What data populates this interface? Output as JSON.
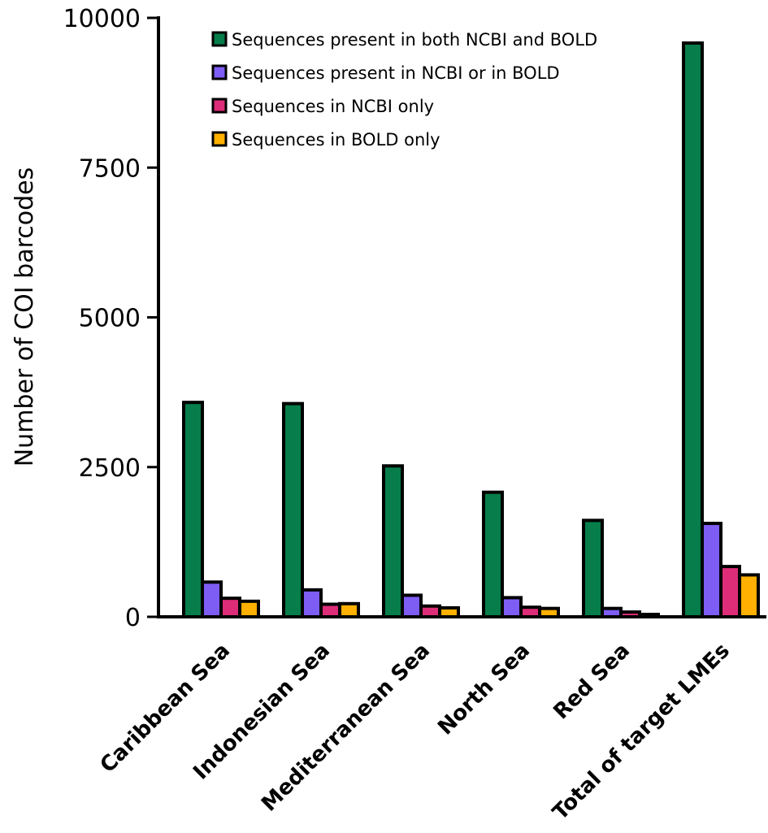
{
  "chart_data": {
    "type": "bar",
    "title": "",
    "xlabel": "",
    "ylabel": "Number of COI barcodes",
    "ylim": [
      0,
      10000
    ],
    "yticks": [
      0,
      2500,
      5000,
      7500,
      10000
    ],
    "ytick_labels": [
      "0",
      "2500",
      "5000",
      "7500",
      "10000"
    ],
    "categories": [
      "Caribbean Sea",
      "Indonesian Sea",
      "Mediterranean Sea",
      "North Sea",
      "Red Sea",
      "Total of target LMEs"
    ],
    "series": [
      {
        "name": "Sequences present in both NCBI and BOLD",
        "color": "#067d4a",
        "values": [
          3580,
          3560,
          2520,
          2080,
          1610,
          9580
        ]
      },
      {
        "name": "Sequences present in NCBI or in BOLD",
        "color": "#7e5df5",
        "values": [
          580,
          450,
          360,
          320,
          140,
          1560
        ]
      },
      {
        "name": "Sequences in NCBI only",
        "color": "#de2d78",
        "values": [
          310,
          210,
          180,
          160,
          80,
          840
        ]
      },
      {
        "name": "Sequences in BOLD only",
        "color": "#ffb000",
        "values": [
          260,
          220,
          150,
          140,
          40,
          700
        ]
      }
    ],
    "legend_position": "top",
    "grid": false
  }
}
